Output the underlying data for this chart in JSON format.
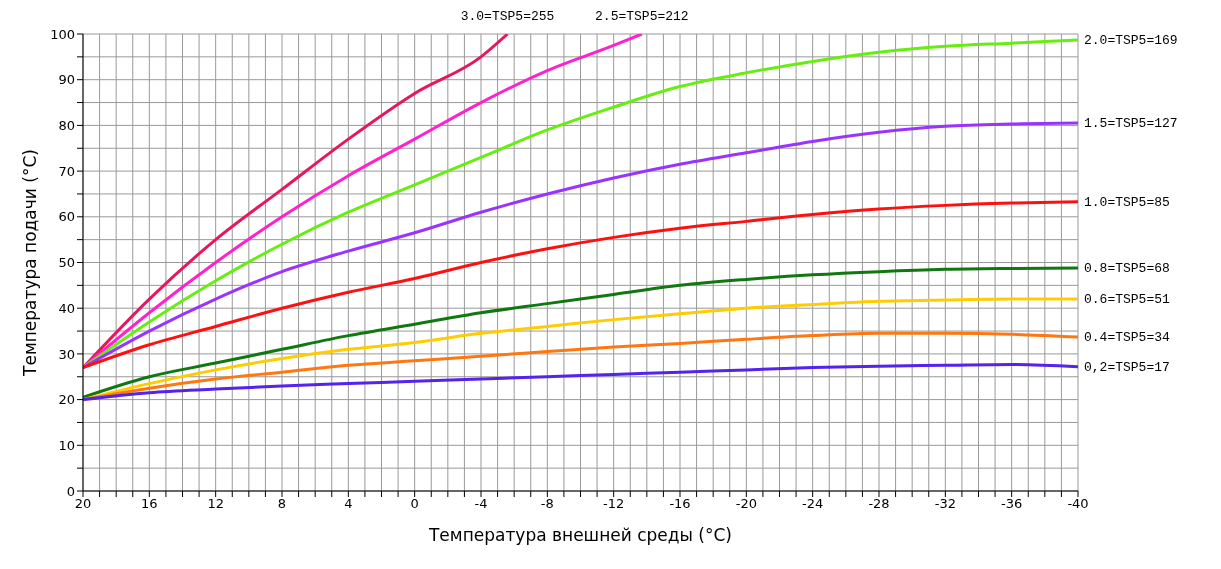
{
  "chart_data": {
    "type": "line",
    "xlabel": "Температура внешней среды (°C)",
    "ylabel": "Температура подачи (°C)",
    "x": [
      20,
      16,
      12,
      8,
      4,
      0,
      -4,
      -8,
      -12,
      -16,
      -20,
      -24,
      -28,
      -32,
      -36,
      -40
    ],
    "xlim": [
      20,
      -40
    ],
    "xticks": [
      20,
      {
        "value": 19,
        "label": null
      },
      {
        "value": 18,
        "label": null
      },
      {
        "value": 17,
        "label": null
      },
      16,
      {
        "value": 15,
        "label": null
      },
      {
        "value": 14,
        "label": null
      },
      {
        "value": 13,
        "label": null
      },
      12,
      {
        "value": 11,
        "label": null
      },
      {
        "value": 10,
        "label": null
      },
      {
        "value": 9,
        "label": null
      },
      8,
      {
        "value": 7,
        "label": null
      },
      {
        "value": 6,
        "label": null
      },
      {
        "value": 5,
        "label": null
      },
      4,
      {
        "value": 3,
        "label": null
      },
      {
        "value": 2,
        "label": null
      },
      {
        "value": 1,
        "label": null
      },
      0,
      {
        "value": -1,
        "label": null
      },
      {
        "value": -2,
        "label": null
      },
      {
        "value": -3,
        "label": null
      },
      -4,
      {
        "value": -5,
        "label": null
      },
      {
        "value": -6,
        "label": null
      },
      {
        "value": -7,
        "label": null
      },
      -8,
      {
        "value": -9,
        "label": null
      },
      {
        "value": -10,
        "label": null
      },
      {
        "value": -11,
        "label": null
      },
      -12,
      {
        "value": -13,
        "label": null
      },
      {
        "value": -14,
        "label": null
      },
      {
        "value": -15,
        "label": null
      },
      -16,
      {
        "value": -17,
        "label": null
      },
      {
        "value": -18,
        "label": null
      },
      {
        "value": -19,
        "label": null
      },
      -20,
      {
        "value": -21,
        "label": null
      },
      {
        "value": -22,
        "label": null
      },
      {
        "value": -23,
        "label": null
      },
      -24,
      {
        "value": -25,
        "label": null
      },
      {
        "value": -26,
        "label": null
      },
      {
        "value": -27,
        "label": null
      },
      -28,
      {
        "value": -29,
        "label": null
      },
      {
        "value": -30,
        "label": null
      },
      {
        "value": -31,
        "label": null
      },
      -32,
      {
        "value": -33,
        "label": null
      },
      {
        "value": -34,
        "label": null
      },
      {
        "value": -35,
        "label": null
      },
      -36,
      {
        "value": -37,
        "label": null
      },
      {
        "value": -38,
        "label": null
      },
      {
        "value": -39,
        "label": null
      },
      -40
    ],
    "ylim": [
      0,
      100
    ],
    "yticks": [
      0,
      {
        "value": 5,
        "label": null
      },
      10,
      {
        "value": 15,
        "label": null
      },
      20,
      {
        "value": 25,
        "label": null
      },
      30,
      {
        "value": 35,
        "label": null
      },
      40,
      {
        "value": 45,
        "label": null
      },
      50,
      {
        "value": 55,
        "label": null
      },
      60,
      {
        "value": 65,
        "label": null
      },
      70,
      {
        "value": 75,
        "label": null
      },
      80,
      {
        "value": 85,
        "label": null
      },
      90,
      {
        "value": 95,
        "label": null
      },
      100
    ],
    "grid": true,
    "marker": "none",
    "line_style": "solid",
    "series": [
      {
        "name": "3.0=TSP5=255",
        "color": "#e8175d",
        "x": [
          20,
          16,
          12,
          8,
          4,
          0,
          -4,
          -5.6
        ],
        "values": [
          27,
          42,
          55,
          66,
          77,
          87,
          95,
          100
        ]
      },
      {
        "name": "2.5=TSP5=212",
        "color": "#ff22cc",
        "x": [
          20,
          16,
          12,
          8,
          4,
          0,
          -4,
          -8,
          -12,
          -13.7
        ],
        "values": [
          27,
          39,
          50,
          60,
          69,
          77,
          85,
          92,
          97.5,
          100
        ]
      },
      {
        "name": "2.0=TSP5=169",
        "color": "#66ee11",
        "values": [
          27,
          37,
          46,
          54,
          61,
          67,
          73,
          79,
          84,
          88.5,
          91.5,
          94,
          96,
          97.3,
          98,
          98.7
        ]
      },
      {
        "name": "1.5=TSP5=127",
        "color": "#9933ff",
        "values": [
          27,
          35,
          42,
          48,
          52.5,
          56.5,
          61,
          65,
          68.5,
          71.5,
          74,
          76.5,
          78.5,
          79.8,
          80.3,
          80.5
        ]
      },
      {
        "name": "1.0=TSP5=85",
        "color": "#ff1010",
        "values": [
          27,
          32,
          36,
          40,
          43.5,
          46.5,
          50,
          53,
          55.5,
          57.5,
          59,
          60.5,
          61.7,
          62.5,
          63,
          63.3
        ]
      },
      {
        "name": "0.8=TSP5=68",
        "color": "#117711",
        "values": [
          20.5,
          25,
          28,
          31,
          34,
          36.5,
          39,
          41,
          43,
          45,
          46.3,
          47.3,
          48,
          48.5,
          48.7,
          48.8
        ]
      },
      {
        "name": "0.6=TSP5=51",
        "color": "#ffcc00",
        "values": [
          20,
          23.5,
          26.5,
          29,
          31,
          32.5,
          34.5,
          36,
          37.5,
          38.8,
          40,
          40.8,
          41.5,
          41.8,
          42,
          42
        ]
      },
      {
        "name": "0.4=TSP5=34",
        "color": "#ff7711",
        "values": [
          20,
          22.5,
          24.5,
          26,
          27.5,
          28.5,
          29.5,
          30.5,
          31.5,
          32.3,
          33.2,
          34,
          34.5,
          34.5,
          34.3,
          33.7
        ]
      },
      {
        "name": "0,2=TSP5=17",
        "color": "#5522ee",
        "values": [
          20,
          21.5,
          22.3,
          23,
          23.5,
          24,
          24.5,
          25,
          25.5,
          26,
          26.5,
          27,
          27.3,
          27.5,
          27.7,
          27.2
        ]
      }
    ]
  }
}
